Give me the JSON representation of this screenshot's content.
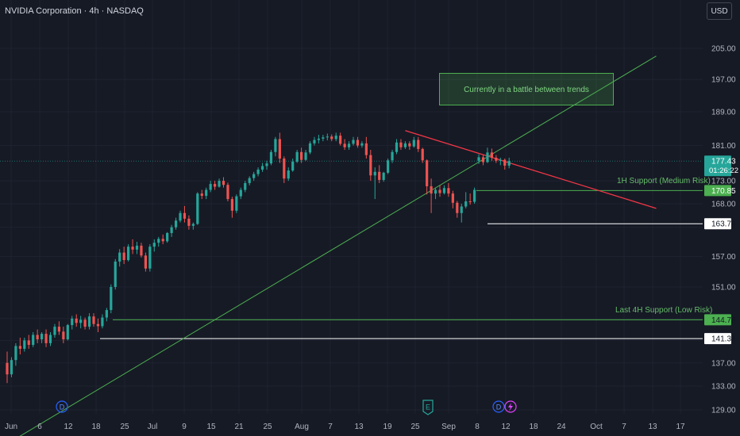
{
  "header": {
    "title": "NVIDIA Corporation · 4h · NASDAQ"
  },
  "currency": "USD",
  "annotations": {
    "box_text": "Currently in a battle between trends",
    "support_1h": "1H Support (Medium Risk)",
    "support_4h": "Last 4H Support (Low Risk)"
  },
  "price_labels": {
    "current": "177.43",
    "countdown": "01:26:22",
    "support_1h": "170.85",
    "level_a": "163.74",
    "support_4h": "144.78",
    "level_b": "141.34"
  },
  "events": [
    "D",
    "E",
    "D"
  ],
  "colors": {
    "up": "#26a69a",
    "down": "#ef5350",
    "trend_up": "#4caf50",
    "trend_down": "#f23645",
    "support_line": "#4caf50",
    "level_line": "#ffffff",
    "dividend_badge": "#2962ff",
    "earnings_badge": "#26a69a"
  },
  "chart_data": {
    "type": "candlestick",
    "symbol": "NVIDIA Corporation",
    "interval": "4h",
    "exchange": "NASDAQ",
    "y_ticks": [
      129,
      133,
      137,
      141.34,
      144.78,
      151,
      157,
      163.74,
      168,
      170.85,
      173,
      177.43,
      181,
      189,
      197,
      205
    ],
    "y_tick_labels": [
      "129.00",
      "133.00",
      "137.00",
      "141.34",
      "144.78",
      "151.00",
      "157.00",
      "163.74",
      "168.00",
      "170.85",
      "173.00",
      "177.43",
      "181.00",
      "189.00",
      "197.00",
      "205.00"
    ],
    "x_ticks": [
      "Jun",
      "6",
      "12",
      "18",
      "25",
      "Jul",
      "9",
      "15",
      "21",
      "25",
      "Aug",
      "7",
      "13",
      "19",
      "25",
      "Sep",
      "8",
      "12",
      "18",
      "24",
      "Oct",
      "7",
      "13",
      "17"
    ],
    "candles": [
      {
        "o": 137,
        "h": 139,
        "l": 133.5,
        "c": 135
      },
      {
        "o": 135,
        "h": 138,
        "l": 134.5,
        "c": 137.5
      },
      {
        "o": 137.5,
        "h": 140.5,
        "l": 136.5,
        "c": 140
      },
      {
        "o": 140,
        "h": 141.5,
        "l": 138.5,
        "c": 139.5
      },
      {
        "o": 139.5,
        "h": 141.5,
        "l": 139,
        "c": 141
      },
      {
        "o": 141,
        "h": 142,
        "l": 139.5,
        "c": 140.2
      },
      {
        "o": 140.2,
        "h": 142.5,
        "l": 139.8,
        "c": 142
      },
      {
        "o": 142,
        "h": 143,
        "l": 140.5,
        "c": 141.2
      },
      {
        "o": 141.2,
        "h": 142.5,
        "l": 140.5,
        "c": 142.2
      },
      {
        "o": 142.2,
        "h": 143,
        "l": 139.8,
        "c": 140.5
      },
      {
        "o": 140.5,
        "h": 142.5,
        "l": 140,
        "c": 142
      },
      {
        "o": 142,
        "h": 144,
        "l": 141.5,
        "c": 143.5
      },
      {
        "o": 143.5,
        "h": 144.5,
        "l": 142,
        "c": 142.6
      },
      {
        "o": 142.6,
        "h": 143.5,
        "l": 140.5,
        "c": 141.2
      },
      {
        "o": 141.2,
        "h": 144,
        "l": 141,
        "c": 143.8
      },
      {
        "o": 143.8,
        "h": 145.5,
        "l": 143,
        "c": 145
      },
      {
        "o": 145,
        "h": 145.8,
        "l": 143.5,
        "c": 144.2
      },
      {
        "o": 144.2,
        "h": 145.5,
        "l": 143.2,
        "c": 144.8
      },
      {
        "o": 144.8,
        "h": 145.2,
        "l": 143,
        "c": 143.5
      },
      {
        "o": 143.5,
        "h": 146,
        "l": 143,
        "c": 145.4
      },
      {
        "o": 145.4,
        "h": 146,
        "l": 143.5,
        "c": 144
      },
      {
        "o": 144,
        "h": 145,
        "l": 142.5,
        "c": 143.6
      },
      {
        "o": 143.6,
        "h": 145.8,
        "l": 143.2,
        "c": 145.2
      },
      {
        "o": 145.2,
        "h": 147,
        "l": 144.5,
        "c": 146.6
      },
      {
        "o": 146.6,
        "h": 151.5,
        "l": 146,
        "c": 151
      },
      {
        "o": 151,
        "h": 156.5,
        "l": 150.5,
        "c": 156
      },
      {
        "o": 156,
        "h": 158.5,
        "l": 155,
        "c": 157.8
      },
      {
        "o": 157.8,
        "h": 159,
        "l": 155.5,
        "c": 156.3
      },
      {
        "o": 156.3,
        "h": 159.5,
        "l": 156,
        "c": 159
      },
      {
        "o": 159,
        "h": 160.5,
        "l": 157.5,
        "c": 158.4
      },
      {
        "o": 158.4,
        "h": 160,
        "l": 157.5,
        "c": 159.2
      },
      {
        "o": 159.2,
        "h": 159.8,
        "l": 156.8,
        "c": 157.2
      },
      {
        "o": 157.2,
        "h": 157.8,
        "l": 154,
        "c": 154.6
      },
      {
        "o": 154.6,
        "h": 159.5,
        "l": 154,
        "c": 159
      },
      {
        "o": 159,
        "h": 160.5,
        "l": 158,
        "c": 159.8
      },
      {
        "o": 159.8,
        "h": 161,
        "l": 159,
        "c": 160.6
      },
      {
        "o": 160.6,
        "h": 161.5,
        "l": 159.5,
        "c": 160.1
      },
      {
        "o": 160.1,
        "h": 162,
        "l": 159.8,
        "c": 161.8
      },
      {
        "o": 161.8,
        "h": 163.5,
        "l": 161,
        "c": 163
      },
      {
        "o": 163,
        "h": 165,
        "l": 162.5,
        "c": 164.4
      },
      {
        "o": 164.4,
        "h": 166.5,
        "l": 164,
        "c": 166
      },
      {
        "o": 166,
        "h": 167.5,
        "l": 164,
        "c": 164.8
      },
      {
        "o": 164.8,
        "h": 165.5,
        "l": 162.5,
        "c": 163.3
      },
      {
        "o": 163.3,
        "h": 164,
        "l": 162.5,
        "c": 163.7
      },
      {
        "o": 163.7,
        "h": 170.5,
        "l": 163.5,
        "c": 170.2
      },
      {
        "o": 170.2,
        "h": 171,
        "l": 169,
        "c": 169.7
      },
      {
        "o": 169.7,
        "h": 171.5,
        "l": 169,
        "c": 171
      },
      {
        "o": 171,
        "h": 173,
        "l": 170.5,
        "c": 172.3
      },
      {
        "o": 172.3,
        "h": 173,
        "l": 171,
        "c": 171.7
      },
      {
        "o": 171.7,
        "h": 173.5,
        "l": 171.5,
        "c": 173
      },
      {
        "o": 173,
        "h": 173.8,
        "l": 171.5,
        "c": 172.1
      },
      {
        "o": 172.1,
        "h": 172.6,
        "l": 168.5,
        "c": 169
      },
      {
        "o": 169,
        "h": 169.5,
        "l": 165,
        "c": 166.5
      },
      {
        "o": 166.5,
        "h": 170,
        "l": 166,
        "c": 169.6
      },
      {
        "o": 169.6,
        "h": 171.5,
        "l": 169,
        "c": 171
      },
      {
        "o": 171,
        "h": 173,
        "l": 170.5,
        "c": 172.5
      },
      {
        "o": 172.5,
        "h": 174,
        "l": 172,
        "c": 173.6
      },
      {
        "o": 173.6,
        "h": 175,
        "l": 173,
        "c": 174.5
      },
      {
        "o": 174.5,
        "h": 176,
        "l": 174,
        "c": 175.5
      },
      {
        "o": 175.5,
        "h": 177,
        "l": 175,
        "c": 176.3
      },
      {
        "o": 176.3,
        "h": 177.5,
        "l": 175.5,
        "c": 176.9
      },
      {
        "o": 176.9,
        "h": 180,
        "l": 176.5,
        "c": 179.5
      },
      {
        "o": 179.5,
        "h": 183,
        "l": 178.5,
        "c": 182.5
      },
      {
        "o": 182.5,
        "h": 184,
        "l": 177,
        "c": 178
      },
      {
        "o": 178,
        "h": 178.5,
        "l": 172.5,
        "c": 173.5
      },
      {
        "o": 173.5,
        "h": 176,
        "l": 173,
        "c": 175.3
      },
      {
        "o": 175.3,
        "h": 178,
        "l": 175,
        "c": 177.3
      },
      {
        "o": 177.3,
        "h": 180,
        "l": 177,
        "c": 179.5
      },
      {
        "o": 179.5,
        "h": 180.5,
        "l": 177,
        "c": 177.7
      },
      {
        "o": 177.7,
        "h": 180,
        "l": 177.5,
        "c": 179.4
      },
      {
        "o": 179.4,
        "h": 182,
        "l": 179,
        "c": 181.5
      },
      {
        "o": 181.5,
        "h": 183,
        "l": 181,
        "c": 182.3
      },
      {
        "o": 182.3,
        "h": 183.5,
        "l": 181.5,
        "c": 182.6
      },
      {
        "o": 182.6,
        "h": 183.5,
        "l": 182,
        "c": 182.9
      },
      {
        "o": 182.9,
        "h": 183.8,
        "l": 182.2,
        "c": 183.1
      },
      {
        "o": 183.1,
        "h": 183.6,
        "l": 182,
        "c": 182.5
      },
      {
        "o": 182.5,
        "h": 184,
        "l": 182,
        "c": 183.3
      },
      {
        "o": 183.3,
        "h": 184,
        "l": 181,
        "c": 181.4
      },
      {
        "o": 181.4,
        "h": 182.5,
        "l": 180,
        "c": 180.6
      },
      {
        "o": 180.6,
        "h": 182,
        "l": 180,
        "c": 181.4
      },
      {
        "o": 181.4,
        "h": 183,
        "l": 181,
        "c": 182.3
      },
      {
        "o": 182.3,
        "h": 183,
        "l": 180.5,
        "c": 181
      },
      {
        "o": 181,
        "h": 182,
        "l": 180.5,
        "c": 181.5
      },
      {
        "o": 181.5,
        "h": 183,
        "l": 178,
        "c": 178.8
      },
      {
        "o": 178.8,
        "h": 180,
        "l": 173,
        "c": 174.2
      },
      {
        "o": 174.2,
        "h": 176,
        "l": 169,
        "c": 175
      },
      {
        "o": 175,
        "h": 176.5,
        "l": 172.5,
        "c": 173.2
      },
      {
        "o": 173.2,
        "h": 175,
        "l": 172.8,
        "c": 174.8
      },
      {
        "o": 174.8,
        "h": 178,
        "l": 174.5,
        "c": 177.6
      },
      {
        "o": 177.6,
        "h": 180,
        "l": 177,
        "c": 179.5
      },
      {
        "o": 179.5,
        "h": 182.5,
        "l": 179,
        "c": 181.7
      },
      {
        "o": 181.7,
        "h": 182.5,
        "l": 180,
        "c": 180.6
      },
      {
        "o": 180.6,
        "h": 182,
        "l": 180.2,
        "c": 181.5
      },
      {
        "o": 181.5,
        "h": 182,
        "l": 180,
        "c": 180.8
      },
      {
        "o": 180.8,
        "h": 183,
        "l": 180.5,
        "c": 182.3
      },
      {
        "o": 182.3,
        "h": 183,
        "l": 179.5,
        "c": 180.2
      },
      {
        "o": 180.2,
        "h": 180.5,
        "l": 177,
        "c": 177.6
      },
      {
        "o": 177.6,
        "h": 177.8,
        "l": 170,
        "c": 171.8
      },
      {
        "o": 171.8,
        "h": 173.5,
        "l": 166,
        "c": 170.2
      },
      {
        "o": 170.2,
        "h": 171.5,
        "l": 169,
        "c": 171
      },
      {
        "o": 171,
        "h": 172,
        "l": 169.5,
        "c": 170.3
      },
      {
        "o": 170.3,
        "h": 172,
        "l": 170,
        "c": 171.4
      },
      {
        "o": 171.4,
        "h": 172.5,
        "l": 169.5,
        "c": 170.2
      },
      {
        "o": 170.2,
        "h": 170.8,
        "l": 167,
        "c": 168.2
      },
      {
        "o": 168.2,
        "h": 168.6,
        "l": 165,
        "c": 166
      },
      {
        "o": 166,
        "h": 168,
        "l": 164,
        "c": 167.4
      },
      {
        "o": 167.4,
        "h": 170.5,
        "l": 167,
        "c": 168.5
      },
      {
        "o": 168.5,
        "h": 170.2,
        "l": 167.8,
        "c": 168.4
      },
      {
        "o": 168.4,
        "h": 171.5,
        "l": 168,
        "c": 171
      },
      {
        "o": 177.5,
        "h": 179,
        "l": 176.8,
        "c": 178.3
      },
      {
        "o": 178.3,
        "h": 178.8,
        "l": 176.5,
        "c": 177.2
      },
      {
        "o": 177.2,
        "h": 180.5,
        "l": 177,
        "c": 179.4
      },
      {
        "o": 179.4,
        "h": 180.3,
        "l": 177.5,
        "c": 178.2
      },
      {
        "o": 178.2,
        "h": 178.8,
        "l": 177,
        "c": 177.5
      },
      {
        "o": 177.5,
        "h": 178.2,
        "l": 176.5,
        "c": 177.7
      },
      {
        "o": 177.7,
        "h": 178,
        "l": 175.5,
        "c": 176.4
      },
      {
        "o": 176.4,
        "h": 178.2,
        "l": 175.8,
        "c": 177.43
      }
    ],
    "trendlines": [
      {
        "name": "ascending",
        "from": [
          0,
          123.5
        ],
        "to": [
          150,
          203
        ]
      },
      {
        "name": "descending",
        "from": [
          92,
          184.5
        ],
        "to": [
          150,
          167
        ]
      }
    ],
    "horizontal_levels": [
      {
        "value": 170.85,
        "label": "1H Support (Medium Risk)",
        "color": "green"
      },
      {
        "value": 163.74,
        "color": "white"
      },
      {
        "value": 144.78,
        "label": "Last 4H Support (Low Risk)",
        "color": "green"
      },
      {
        "value": 141.34,
        "color": "white"
      }
    ],
    "current_price": 177.43,
    "grid": true,
    "y_scale": "log"
  }
}
